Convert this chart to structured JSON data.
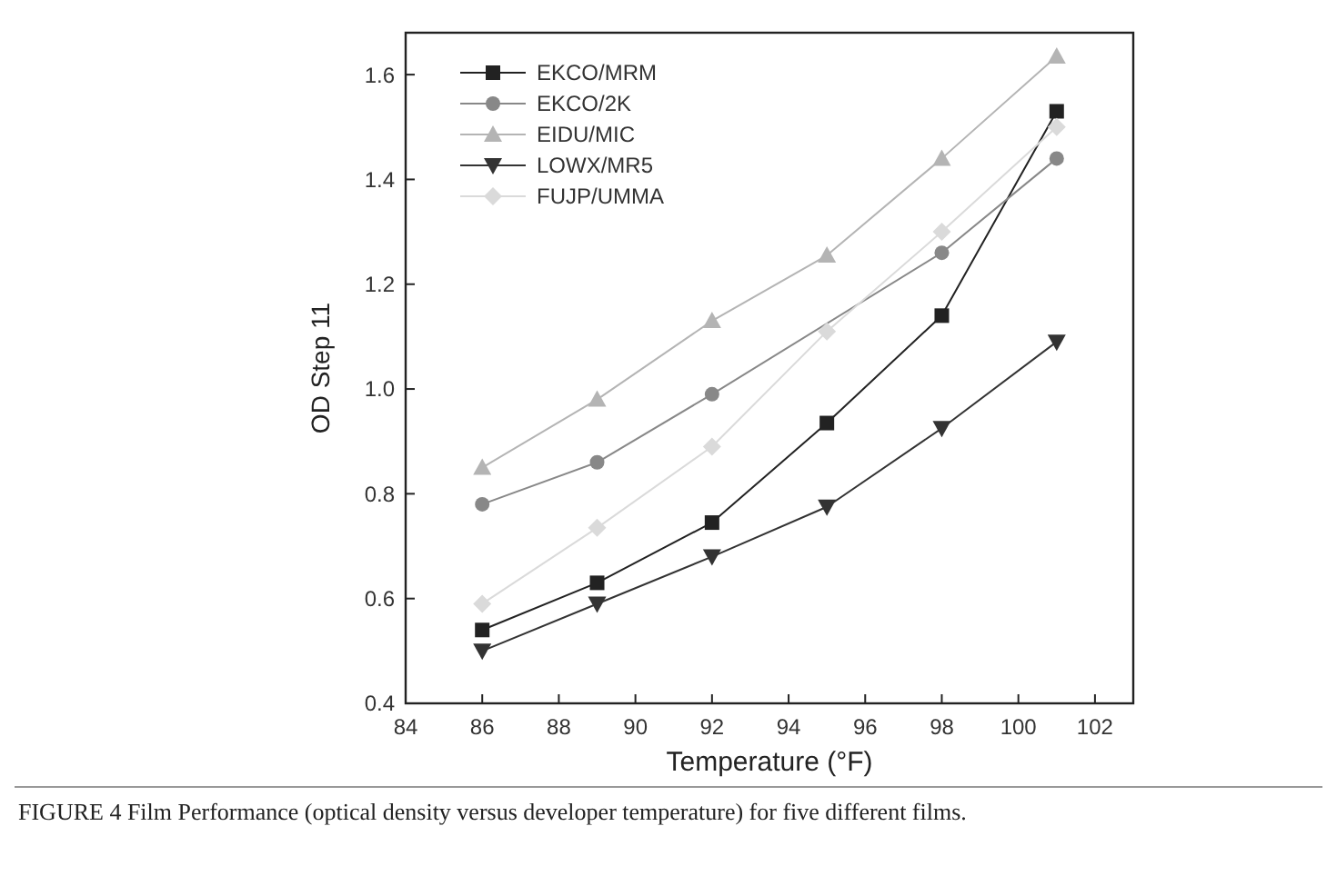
{
  "chart_data": {
    "type": "line",
    "xlabel": "Temperature (°F)",
    "ylabel": "OD Step 11",
    "x": [
      86,
      89,
      92,
      95,
      98,
      101
    ],
    "series": [
      {
        "name": "EKCO/MRM",
        "color": "#222222",
        "marker": "square",
        "values": [
          0.54,
          0.63,
          0.745,
          0.935,
          1.14,
          1.53
        ]
      },
      {
        "name": "EKCO/2K",
        "color": "#888888",
        "marker": "circle",
        "values": [
          0.78,
          0.86,
          0.99,
          null,
          1.26,
          1.44
        ]
      },
      {
        "name": "EIDU/MIC",
        "color": "#b4b4b4",
        "marker": "triangle",
        "values": [
          0.85,
          0.98,
          1.13,
          1.255,
          1.44,
          1.635
        ]
      },
      {
        "name": "LOWX/MR5",
        "color": "#333333",
        "marker": "triangle-down",
        "values": [
          0.5,
          0.59,
          0.68,
          0.775,
          0.925,
          1.09
        ]
      },
      {
        "name": "FUJP/UMMA",
        "color": "#dadada",
        "marker": "diamond",
        "values": [
          0.59,
          0.735,
          0.89,
          1.11,
          1.3,
          1.5
        ]
      }
    ],
    "xlim": [
      84,
      103
    ],
    "xticks": [
      84,
      86,
      88,
      90,
      92,
      94,
      96,
      98,
      100,
      102
    ],
    "ylim": [
      0.4,
      1.68
    ],
    "yticks": [
      0.4,
      0.6,
      0.8,
      {
        "value": 1,
        "label": "1.0"
      },
      1.2,
      1.4,
      1.6
    ],
    "legend": "top left",
    "annotations": [
      "FIGURE 4 Film Performance (optical density versus developer temperature) for five different films."
    ]
  }
}
